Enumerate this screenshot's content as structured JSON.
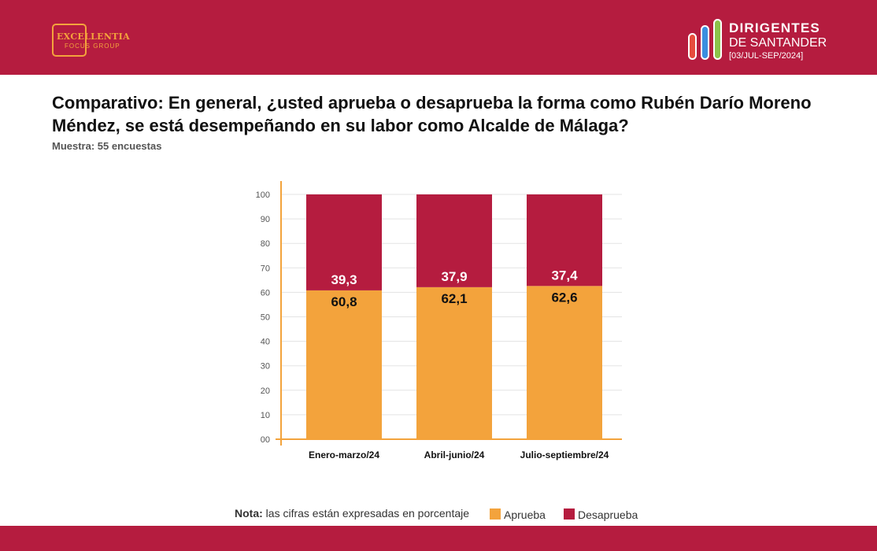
{
  "header": {
    "left_logo": {
      "name": "EXCELLENTIA",
      "sub": "FOCUS GROUP"
    },
    "right_logo": {
      "title": "DIRIGENTES",
      "subtitle": "DE SANTANDER",
      "period": "[03/JUL-SEP/2024]"
    }
  },
  "title": "Comparativo:  En general, ¿usted aprueba o desaprueba la forma como Rubén Darío Moreno Méndez, se está desempeñando en su labor como Alcalde de Málaga?",
  "sample": "Muestra: 55 encuestas",
  "note": {
    "label": "Nota:",
    "text": " las cifras están expresadas en porcentaje"
  },
  "colors": {
    "brand": "#b51c3f",
    "aprueba": "#f3a33c",
    "desaprueba": "#b51c3f"
  },
  "chart_data": {
    "type": "bar",
    "stacked": true,
    "categories": [
      "Enero-marzo/24",
      "Abril-junio/24",
      "Julio-septiembre/24"
    ],
    "series": [
      {
        "name": "Aprueba",
        "values": [
          60.8,
          62.1,
          62.6
        ],
        "labels": [
          "60,8",
          "62,1",
          "62,6"
        ]
      },
      {
        "name": "Desaprueba",
        "values": [
          39.3,
          37.9,
          37.4
        ],
        "labels": [
          "39,3",
          "37,9",
          "37,4"
        ]
      }
    ],
    "ylim": [
      0,
      100
    ],
    "yticks": [
      "00",
      "10",
      "20",
      "30",
      "40",
      "50",
      "60",
      "70",
      "80",
      "90",
      "100"
    ],
    "grid": true,
    "legend": "bottom"
  }
}
